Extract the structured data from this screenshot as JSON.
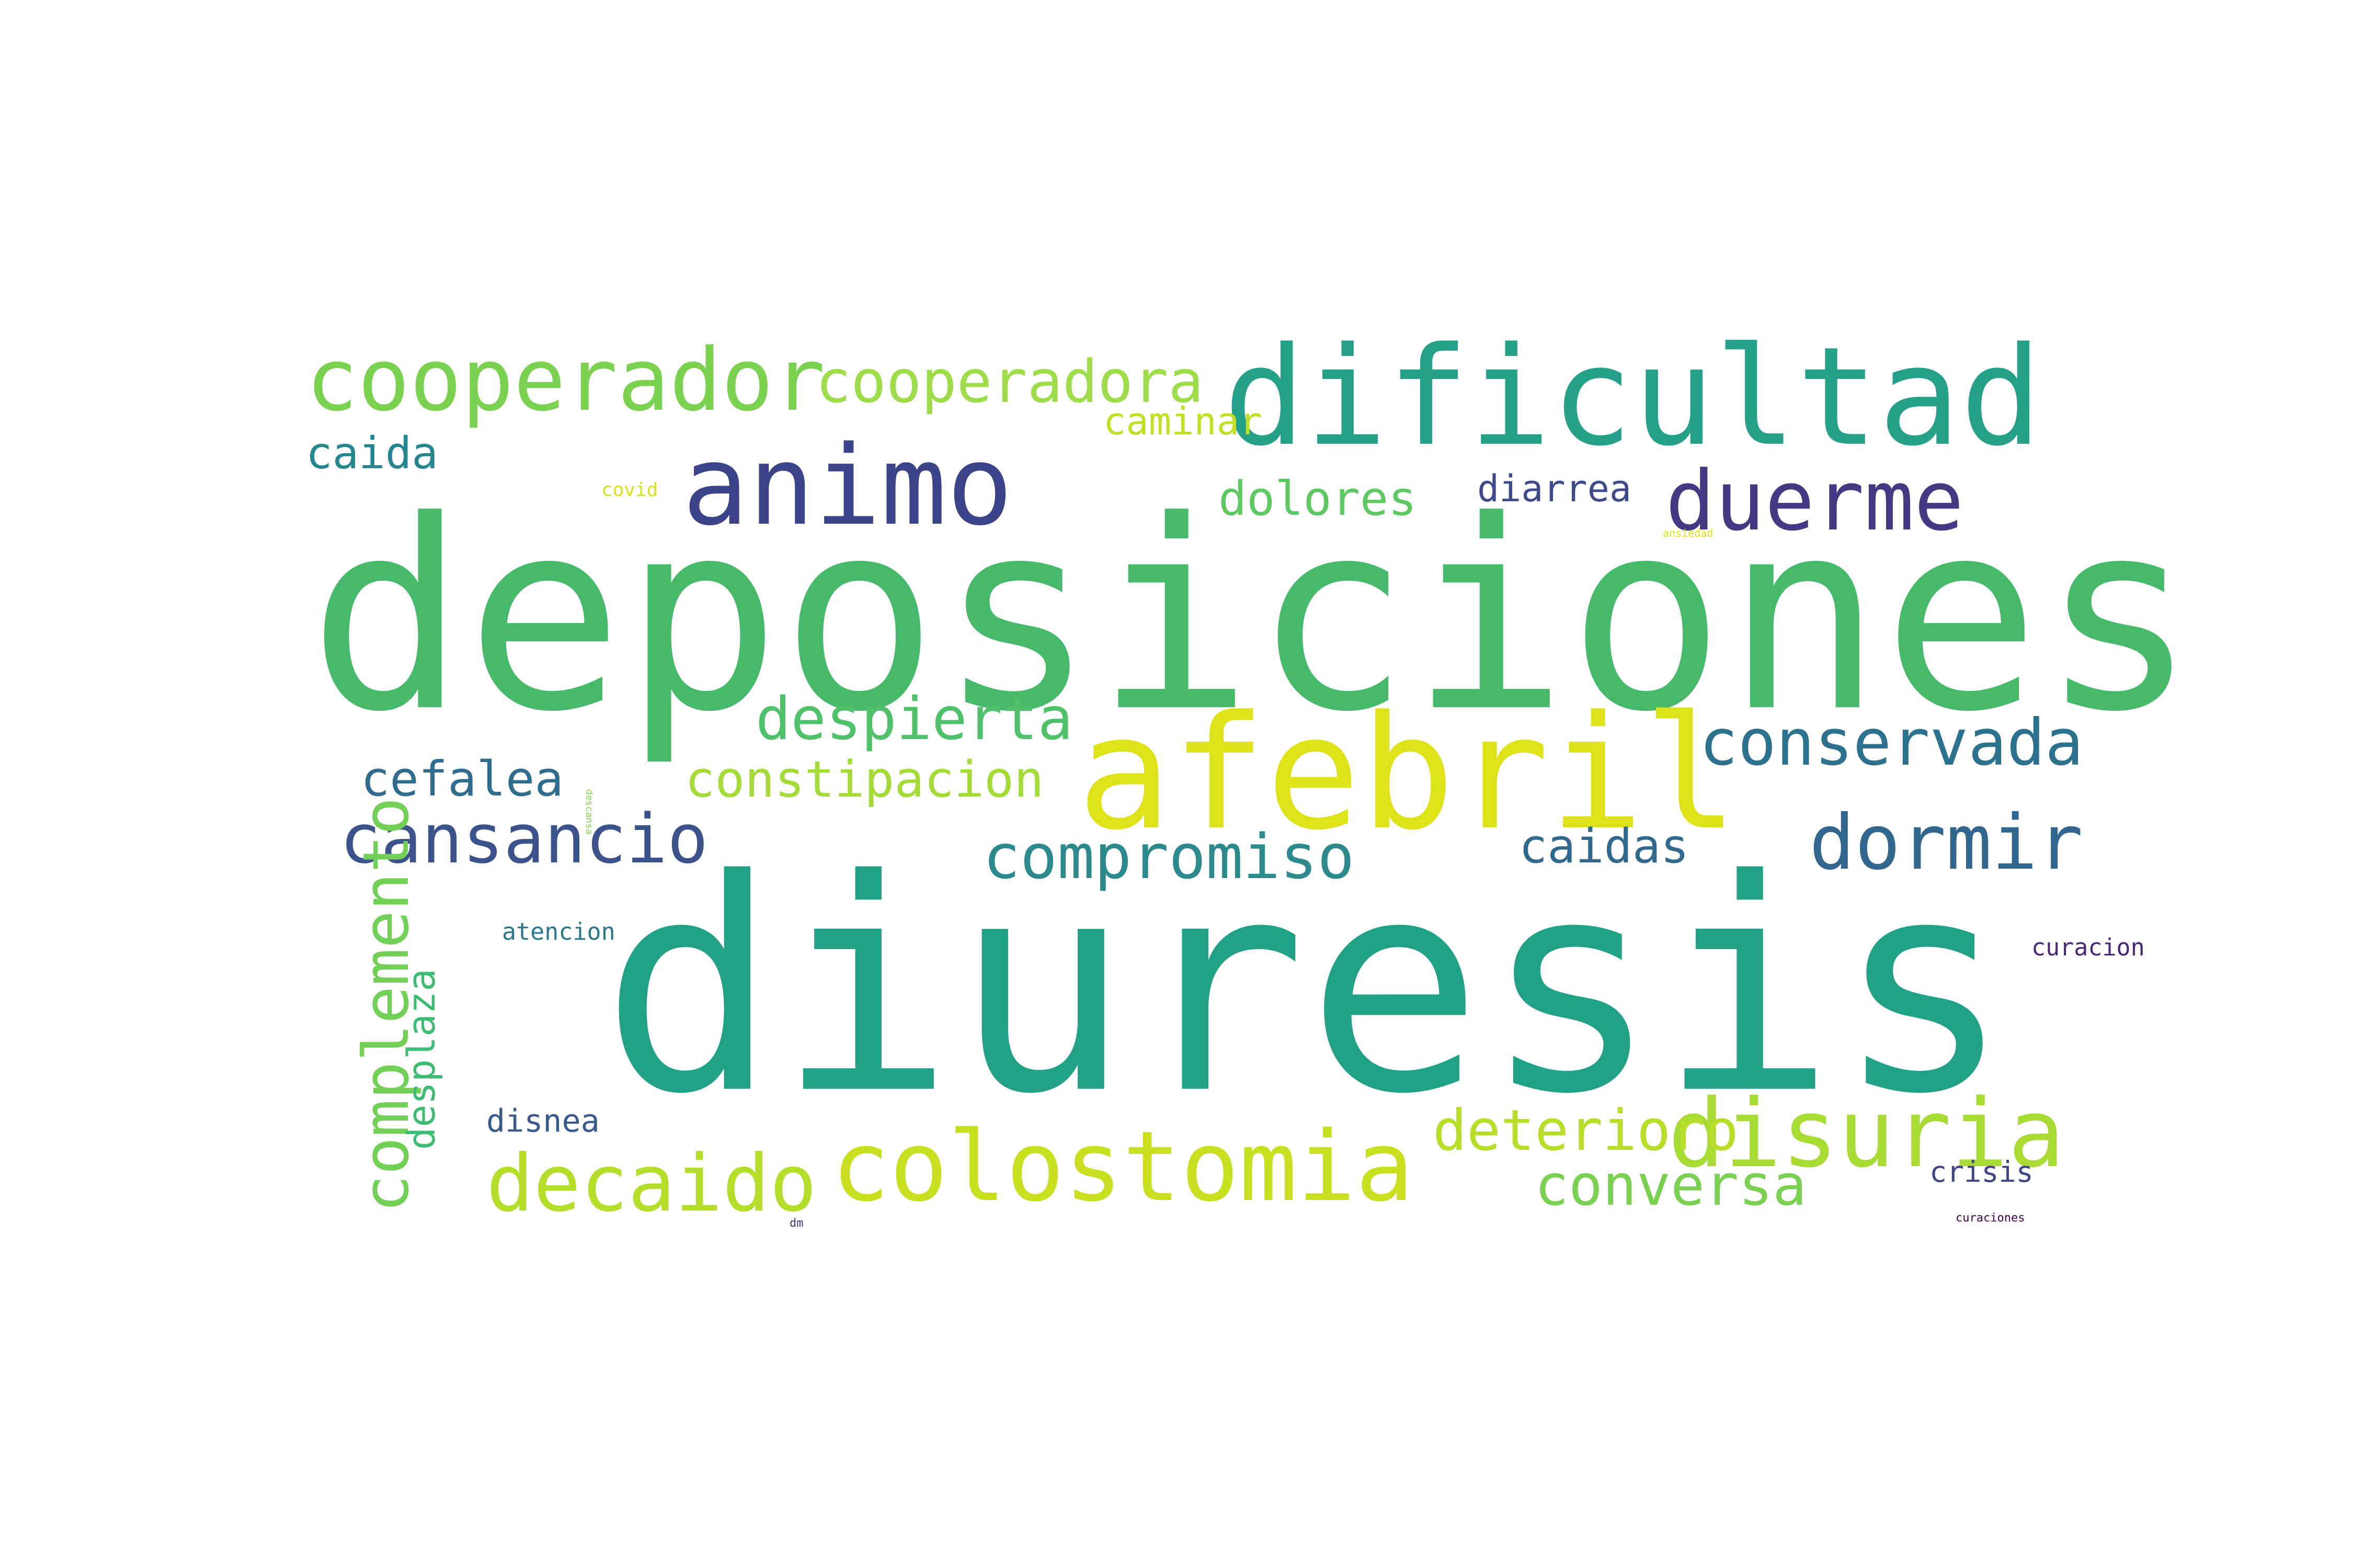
{
  "words": [
    {
      "id": "deposiciones",
      "text": "deposiciones",
      "color": "#46b96a"
    },
    {
      "id": "diuresis",
      "text": "diuresis",
      "color": "#21a186"
    },
    {
      "id": "afebril",
      "text": "afebril",
      "color": "#dde318"
    },
    {
      "id": "dificultad",
      "text": "dificultad",
      "color": "#25a089"
    },
    {
      "id": "animo",
      "text": "animo",
      "color": "#3b4488"
    },
    {
      "id": "cooperador",
      "text": "cooperador",
      "color": "#7bd250"
    },
    {
      "id": "cooperadora",
      "text": "cooperadora",
      "color": "#9edc4a"
    },
    {
      "id": "duerme",
      "text": "duerme",
      "color": "#443983"
    },
    {
      "id": "colostomia",
      "text": "colostomia",
      "color": "#c8e020"
    },
    {
      "id": "disuria",
      "text": "disuria",
      "color": "#a8db34"
    },
    {
      "id": "decaido",
      "text": "decaido",
      "color": "#b5de2b"
    },
    {
      "id": "conservada",
      "text": "conservada",
      "color": "#2c728e"
    },
    {
      "id": "dormir",
      "text": "dormir",
      "color": "#31668e"
    },
    {
      "id": "cansancio",
      "text": "cansancio",
      "color": "#3b528b"
    },
    {
      "id": "compromiso",
      "text": "compromiso",
      "color": "#2c8a8c"
    },
    {
      "id": "despierta",
      "text": "despierta",
      "color": "#4fc16b"
    },
    {
      "id": "constipacion",
      "text": "constipacion",
      "color": "#a5db36"
    },
    {
      "id": "cefalea",
      "text": "cefalea",
      "color": "#2f6c8e"
    },
    {
      "id": "deterioro",
      "text": "deterioro",
      "color": "#73d056"
    },
    {
      "id": "conversa",
      "text": "conversa",
      "color": "#3fbc73"
    },
    {
      "id": "caidas",
      "text": "caidas",
      "color": "#b8de29"
    },
    {
      "id": "dolores",
      "text": "dolores",
      "color": "#7ad151"
    },
    {
      "id": "caminar",
      "text": "caminar",
      "color": "#31688e"
    },
    {
      "id": "caida",
      "text": "caida",
      "color": "#5ec962"
    },
    {
      "id": "diarrea",
      "text": "diarrea",
      "color": "#c2df23"
    },
    {
      "id": "disnea",
      "text": "disnea",
      "color": "#24868e"
    },
    {
      "id": "atencion",
      "text": "atencion",
      "color": "#3e4a89"
    },
    {
      "id": "curacion",
      "text": "curacion",
      "color": "#38598c"
    },
    {
      "id": "crisis",
      "text": "crisis",
      "color": "#2a788e"
    },
    {
      "id": "covid",
      "text": "covid",
      "color": "#482878"
    },
    {
      "id": "ansiedad",
      "text": "ansiedad",
      "color": "#414487"
    },
    {
      "id": "dm",
      "text": "dm",
      "color": "#d8e219"
    },
    {
      "id": "curaciones",
      "text": "curaciones",
      "color": "#dfe318"
    },
    {
      "id": "complemento",
      "text": "complemento",
      "color": "#86d549"
    },
    {
      "id": "desplaza",
      "text": "desplaza",
      "color": "#46337e"
    },
    {
      "id": "descansa",
      "text": "descansa",
      "color": "#440154"
    }
  ]
}
